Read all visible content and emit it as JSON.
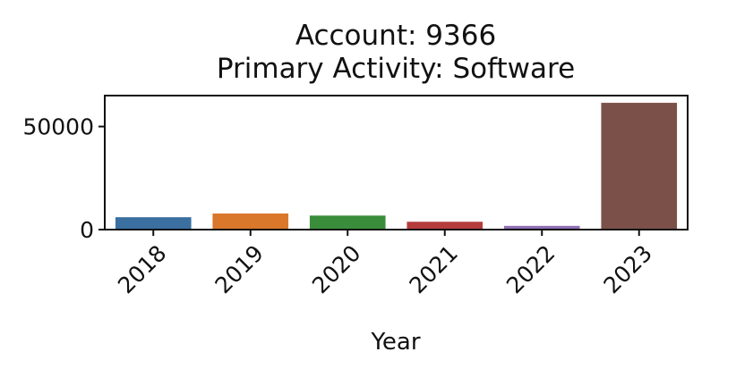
{
  "chart_data": {
    "type": "bar",
    "title": "Account: 9366",
    "subtitle": "Primary Activity: Software",
    "xlabel": "Year",
    "ylabel": "",
    "categories": [
      "2018",
      "2019",
      "2020",
      "2021",
      "2022",
      "2023"
    ],
    "values": [
      6000,
      7800,
      6800,
      3800,
      1800,
      61500
    ],
    "colors": [
      "#3a6fa0",
      "#d9772b",
      "#3a8d3a",
      "#b53c3d",
      "#8f6fb3",
      "#7a5048"
    ],
    "ylim": [
      0,
      65000
    ],
    "yticks": [
      {
        "value": 0,
        "label": "0"
      },
      {
        "value": 50000,
        "label": "50000"
      }
    ],
    "grid": false,
    "legend": "none"
  }
}
